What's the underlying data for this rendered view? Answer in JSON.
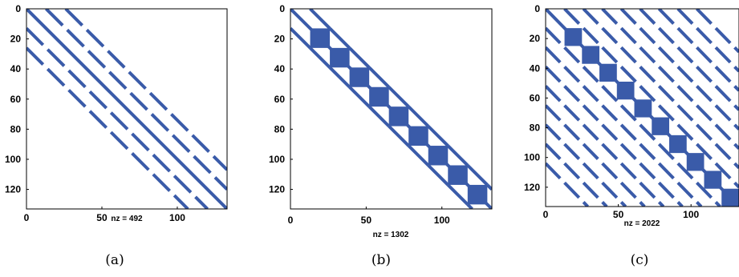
{
  "chart_data": [
    {
      "type": "sparsity",
      "caption": "(a)",
      "xlabel": "nz = 492",
      "xlim": [
        0,
        133
      ],
      "ylim": [
        0,
        133
      ],
      "xticks": [
        0,
        50,
        100
      ],
      "yticks": [
        0,
        20,
        40,
        60,
        80,
        100,
        120
      ],
      "main_diagonal": true,
      "diagonal_offsets": [
        -26,
        -13,
        13,
        26
      ],
      "dash_period": 14,
      "dash_length": 11,
      "blocks": []
    },
    {
      "type": "sparsity",
      "caption": "(b)",
      "xlabel": "nz = 1302",
      "xlim": [
        0,
        133
      ],
      "ylim": [
        0,
        133
      ],
      "xticks": [
        0,
        50,
        100
      ],
      "yticks": [
        0,
        20,
        40,
        60,
        80,
        100,
        120
      ],
      "main_diagonal": true,
      "diagonal_offsets": [
        -13,
        13
      ],
      "dash_period": 13,
      "dash_length": 13,
      "blocks": [
        {
          "start": 13,
          "size": 13
        },
        {
          "start": 26,
          "size": 13
        },
        {
          "start": 39,
          "size": 13
        },
        {
          "start": 52,
          "size": 13
        },
        {
          "start": 65,
          "size": 13
        },
        {
          "start": 78,
          "size": 13
        },
        {
          "start": 91,
          "size": 13
        },
        {
          "start": 104,
          "size": 13
        },
        {
          "start": 117,
          "size": 13
        }
      ]
    },
    {
      "type": "sparsity",
      "caption": "(c)",
      "xlabel": "nz = 2022",
      "xlim": [
        0,
        133
      ],
      "ylim": [
        0,
        133
      ],
      "xticks": [
        0,
        50,
        100
      ],
      "yticks": [
        0,
        20,
        40,
        60,
        80,
        100,
        120
      ],
      "main_diagonal": true,
      "diagonal_offsets": [
        -104,
        -91,
        -78,
        -65,
        -52,
        -39,
        -26,
        -13,
        13,
        26,
        39,
        52,
        65,
        78,
        91,
        104
      ],
      "dash_period": 13,
      "dash_length": 10,
      "blocks": [
        {
          "start": 13,
          "size": 12
        },
        {
          "start": 25,
          "size": 12
        },
        {
          "start": 37,
          "size": 12
        },
        {
          "start": 49,
          "size": 12
        },
        {
          "start": 61,
          "size": 12
        },
        {
          "start": 73,
          "size": 12
        },
        {
          "start": 85,
          "size": 12
        },
        {
          "start": 97,
          "size": 12
        },
        {
          "start": 109,
          "size": 12
        },
        {
          "start": 121,
          "size": 12
        }
      ]
    }
  ],
  "colors": {
    "marker": "#3a5ba9",
    "axis": "#000000",
    "background": "#ffffff"
  }
}
